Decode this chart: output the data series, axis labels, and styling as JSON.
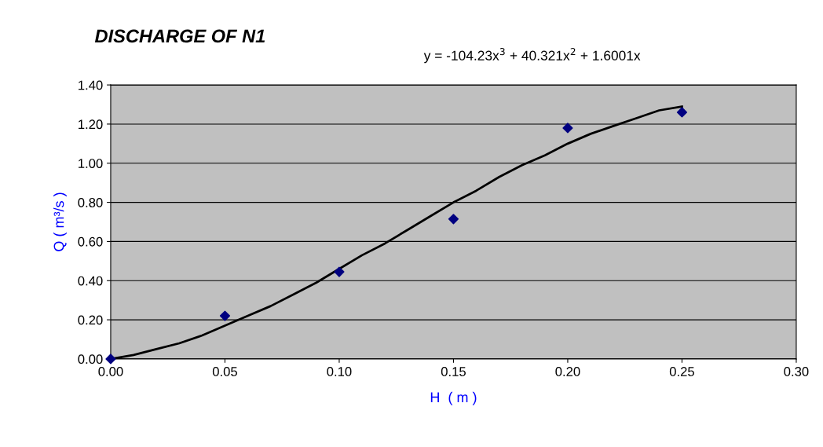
{
  "chart_data": {
    "type": "scatter",
    "title": "DISCHARGE OF N1",
    "xlabel": "H  ( m )",
    "ylabel": "Q ( m³/s )",
    "annotations": [
      "y = -104.23x$^{3}$ + 40.321x$^{2}$ + 1.6001x"
    ],
    "x": [
      0,
      0.05,
      0.1,
      0.15,
      0.2,
      0.25
    ],
    "series": [
      {
        "color": "#000080",
        "marker": "diamond",
        "values": [
          0,
          0.22,
          0.445,
          0.715,
          1.18,
          1.26
        ]
      },
      {
        "type": "line",
        "color": "#000000",
        "marker": "none",
        "line_style": "solid",
        "x": [
          0,
          0.01,
          0.02,
          0.03,
          0.04,
          0.05,
          0.06,
          0.07,
          0.08,
          0.09,
          0.1,
          0.11,
          0.12,
          0.13,
          0.14,
          0.15,
          0.16,
          0.17,
          0.18,
          0.19,
          0.2,
          0.21,
          0.22,
          0.23,
          0.24,
          0.25
        ],
        "values": [
          0,
          0.02,
          0.05,
          0.08,
          0.12,
          0.17,
          0.22,
          0.27,
          0.33,
          0.39,
          0.46,
          0.53,
          0.59,
          0.66,
          0.73,
          0.8,
          0.86,
          0.93,
          0.99,
          1.04,
          1.1,
          1.15,
          1.19,
          1.23,
          1.27,
          1.29
        ]
      }
    ],
    "xlim": [
      0,
      0.3
    ],
    "ylim": [
      0,
      1.4
    ],
    "xticks": [
      {
        "value": 0,
        "label": "0.00"
      },
      {
        "value": 0.05,
        "label": "0.05"
      },
      {
        "value": 0.1,
        "label": "0.10"
      },
      {
        "value": 0.15,
        "label": "0.15"
      },
      {
        "value": 0.2,
        "label": "0.20"
      },
      {
        "value": 0.25,
        "label": "0.25"
      },
      {
        "value": 0.3,
        "label": "0.30"
      }
    ],
    "yticks": [
      {
        "value": 0,
        "label": "0.00"
      },
      {
        "value": 0.2,
        "label": "0.20"
      },
      {
        "value": 0.4,
        "label": "0.40"
      },
      {
        "value": 0.6,
        "label": "0.60"
      },
      {
        "value": 0.8,
        "label": "0.80"
      },
      {
        "value": 1.0,
        "label": "1.00"
      },
      {
        "value": 1.2,
        "label": "1.20"
      },
      {
        "value": 1.4,
        "label": "1.40"
      }
    ],
    "grid": "y",
    "legend": false
  }
}
